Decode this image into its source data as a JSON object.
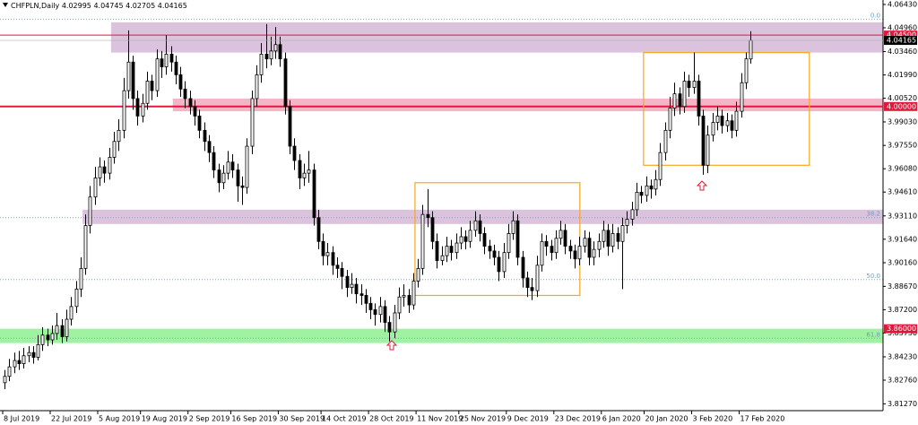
{
  "chart_data": {
    "type": "candlestick",
    "symbol": "CHFPLN,Daily",
    "ylim": [
      3.8084,
      4.0671
    ],
    "yticks": [
      {
        "value": 4.0643,
        "label": "4.06430"
      },
      {
        "value": 4.0496,
        "label": "4.04960"
      },
      {
        "value": 4.0346,
        "label": "4.03460"
      },
      {
        "value": 4.0199,
        "label": "4.01990"
      },
      {
        "value": 4.0052,
        "label": "4.00520"
      },
      {
        "value": 3.9903,
        "label": "3.99030"
      },
      {
        "value": 3.9755,
        "label": "3.97550"
      },
      {
        "value": 3.9608,
        "label": "3.96080"
      },
      {
        "value": 3.9461,
        "label": "3.94610"
      },
      {
        "value": 3.9311,
        "label": "3.93110"
      },
      {
        "value": 3.9164,
        "label": "3.91640"
      },
      {
        "value": 3.9016,
        "label": "3.90160"
      },
      {
        "value": 3.8867,
        "label": "3.88670"
      },
      {
        "value": 3.872,
        "label": "3.87200"
      },
      {
        "value": 3.8573,
        "label": "3.85730"
      },
      {
        "value": 3.8423,
        "label": "3.84230"
      },
      {
        "value": 3.8276,
        "label": "3.82760"
      },
      {
        "value": 3.8127,
        "label": "3.81270"
      }
    ],
    "xticks": [
      {
        "value": 0,
        "label": "8 Jul 2019"
      },
      {
        "value": 10,
        "label": "22 Jul 2019"
      },
      {
        "value": 20,
        "label": "5 Aug 2019"
      },
      {
        "value": 29,
        "label": "19 Aug 2019"
      },
      {
        "value": 39,
        "label": "2 Sep 2019"
      },
      {
        "value": 48,
        "label": "16 Sep 2019"
      },
      {
        "value": 58,
        "label": "30 Sep 2019"
      },
      {
        "value": 67,
        "label": "14 Oct 2019"
      },
      {
        "value": 77,
        "label": "28 Oct 2019"
      },
      {
        "value": 87,
        "label": "11 Nov 2019"
      },
      {
        "value": 96,
        "label": "25 Nov 2019"
      },
      {
        "value": 106,
        "label": "9 Dec 2019"
      },
      {
        "value": 116,
        "label": "23 Dec 2019"
      },
      {
        "value": 126,
        "label": "6 Jan 2020"
      },
      {
        "value": 135,
        "label": "20 Jan 2020"
      },
      {
        "value": 145,
        "label": "3 Feb 2020"
      },
      {
        "value": 155,
        "label": "17 Feb 2020"
      }
    ],
    "zones": [
      {
        "from": 4.053,
        "to": 4.034,
        "start": 23,
        "color": "#d5b8d8"
      },
      {
        "from": 4.005,
        "to": 3.997,
        "start": 36,
        "color": "#f2a9bd"
      },
      {
        "from": 3.935,
        "to": 3.926,
        "start": 17,
        "color": "#d5b8d8"
      },
      {
        "from": 3.86,
        "to": 3.851,
        "start": -1,
        "color": "#8ef08e"
      }
    ],
    "boxes": [
      {
        "x": [
          86.4,
          121.1
        ],
        "y": [
          3.881,
          3.952
        ],
        "color": "#f5a623"
      },
      {
        "x": [
          134.5,
          169.4
        ],
        "y": [
          3.963,
          4.034
        ],
        "color": "#f5a623"
      }
    ],
    "fib_levels": [
      {
        "value": 4.055,
        "label": "0.0"
      },
      {
        "value": 3.93,
        "label": "38.2"
      },
      {
        "value": 3.891,
        "label": "50.0"
      },
      {
        "value": 3.854,
        "label": "61.8"
      }
    ],
    "levels": [
      {
        "value": 4.045,
        "label": "4.04500",
        "color": "#e0193c",
        "width": 1
      },
      {
        "value": 4.0,
        "label": "4.00000",
        "color": "#e0193c",
        "width": 2
      },
      {
        "value": 3.86,
        "label": "3.86000",
        "color": "#e0193c",
        "width": 0
      }
    ],
    "candles": [
      [
        3.826,
        3.834,
        3.822,
        3.83
      ],
      [
        3.83,
        3.841,
        3.827,
        3.836
      ],
      [
        3.836,
        3.845,
        3.832,
        3.84
      ],
      [
        3.84,
        3.846,
        3.834,
        3.838
      ],
      [
        3.838,
        3.848,
        3.835,
        3.843
      ],
      [
        3.843,
        3.849,
        3.839,
        3.845
      ],
      [
        3.845,
        3.849,
        3.838,
        3.842
      ],
      [
        3.842,
        3.856,
        3.84,
        3.85
      ],
      [
        3.85,
        3.861,
        3.846,
        3.856
      ],
      [
        3.856,
        3.86,
        3.849,
        3.853
      ],
      [
        3.853,
        3.862,
        3.85,
        3.857
      ],
      [
        3.857,
        3.87,
        3.853,
        3.862
      ],
      [
        3.862,
        3.866,
        3.851,
        3.855
      ],
      [
        3.855,
        3.872,
        3.852,
        3.866
      ],
      [
        3.866,
        3.88,
        3.862,
        3.874
      ],
      [
        3.874,
        3.89,
        3.87,
        3.885
      ],
      [
        3.885,
        3.905,
        3.88,
        3.898
      ],
      [
        3.898,
        3.932,
        3.894,
        3.925
      ],
      [
        3.925,
        3.95,
        3.92,
        3.943
      ],
      [
        3.943,
        3.962,
        3.938,
        3.955
      ],
      [
        3.955,
        3.968,
        3.95,
        3.962
      ],
      [
        3.962,
        3.966,
        3.952,
        3.958
      ],
      [
        3.958,
        3.974,
        3.954,
        3.968
      ],
      [
        3.968,
        3.984,
        3.964,
        3.978
      ],
      [
        3.978,
        3.992,
        3.972,
        3.985
      ],
      [
        3.985,
        4.018,
        3.98,
        4.01
      ],
      [
        4.01,
        4.048,
        4.005,
        4.028
      ],
      [
        4.028,
        4.032,
        3.998,
        4.005
      ],
      [
        4.005,
        4.01,
        3.988,
        3.994
      ],
      [
        3.994,
        4.008,
        3.99,
        4.002
      ],
      [
        4.002,
        4.022,
        3.998,
        4.016
      ],
      [
        4.016,
        4.02,
        4.004,
        4.01
      ],
      [
        4.01,
        4.036,
        4.006,
        4.03
      ],
      [
        4.03,
        4.035,
        4.018,
        4.025
      ],
      [
        4.025,
        4.045,
        4.02,
        4.033
      ],
      [
        4.033,
        4.038,
        4.022,
        4.028
      ],
      [
        4.028,
        4.032,
        4.014,
        4.02
      ],
      [
        4.02,
        4.025,
        4.006,
        4.011
      ],
      [
        4.011,
        4.016,
        3.999,
        4.005
      ],
      [
        4.005,
        4.01,
        3.995,
        4.0
      ],
      [
        4.0,
        4.004,
        3.988,
        3.994
      ],
      [
        3.994,
        3.998,
        3.98,
        3.985
      ],
      [
        3.985,
        3.99,
        3.972,
        3.978
      ],
      [
        3.978,
        3.982,
        3.965,
        3.971
      ],
      [
        3.971,
        3.975,
        3.955,
        3.96
      ],
      [
        3.96,
        3.964,
        3.946,
        3.952
      ],
      [
        3.952,
        3.963,
        3.948,
        3.958
      ],
      [
        3.958,
        3.972,
        3.954,
        3.965
      ],
      [
        3.965,
        3.97,
        3.955,
        3.96
      ],
      [
        3.96,
        3.964,
        3.94,
        3.95
      ],
      [
        3.95,
        3.956,
        3.938,
        3.949
      ],
      [
        3.949,
        3.98,
        3.945,
        3.975
      ],
      [
        3.975,
        4.01,
        3.97,
        4.005
      ],
      [
        4.005,
        4.026,
        4.0,
        4.02
      ],
      [
        4.02,
        4.04,
        4.015,
        4.033
      ],
      [
        4.033,
        4.052,
        4.024,
        4.03
      ],
      [
        4.03,
        4.044,
        4.026,
        4.035
      ],
      [
        4.035,
        4.05,
        4.03,
        4.039
      ],
      [
        4.039,
        4.044,
        4.025,
        4.03
      ],
      [
        4.03,
        4.034,
        3.995,
        4.0
      ],
      [
        4.0,
        4.004,
        3.97,
        3.975
      ],
      [
        3.975,
        3.98,
        3.96,
        3.966
      ],
      [
        3.966,
        3.97,
        3.948,
        3.955
      ],
      [
        3.955,
        3.964,
        3.95,
        3.958
      ],
      [
        3.958,
        3.972,
        3.952,
        3.96
      ],
      [
        3.96,
        3.964,
        3.925,
        3.93
      ],
      [
        3.93,
        3.935,
        3.91,
        3.915
      ],
      [
        3.915,
        3.92,
        3.9,
        3.906
      ],
      [
        3.906,
        3.914,
        3.9,
        3.908
      ],
      [
        3.908,
        3.912,
        3.894,
        3.9
      ],
      [
        3.9,
        3.905,
        3.892,
        3.898
      ],
      [
        3.898,
        3.902,
        3.885,
        3.893
      ],
      [
        3.893,
        3.897,
        3.88,
        3.886
      ],
      [
        3.886,
        3.895,
        3.882,
        3.888
      ],
      [
        3.888,
        3.892,
        3.876,
        3.882
      ],
      [
        3.882,
        3.888,
        3.875,
        3.881
      ],
      [
        3.881,
        3.885,
        3.87,
        3.876
      ],
      [
        3.876,
        3.88,
        3.866,
        3.872
      ],
      [
        3.872,
        3.876,
        3.862,
        3.869
      ],
      [
        3.869,
        3.88,
        3.864,
        3.874
      ],
      [
        3.874,
        3.878,
        3.858,
        3.864
      ],
      [
        3.864,
        3.868,
        3.852,
        3.858
      ],
      [
        3.858,
        3.875,
        3.854,
        3.87
      ],
      [
        3.87,
        3.886,
        3.866,
        3.88
      ],
      [
        3.88,
        3.888,
        3.874,
        3.881
      ],
      [
        3.881,
        3.885,
        3.87,
        3.875
      ],
      [
        3.875,
        3.895,
        3.872,
        3.89
      ],
      [
        3.89,
        3.904,
        3.886,
        3.898
      ],
      [
        3.898,
        3.938,
        3.894,
        3.932
      ],
      [
        3.932,
        3.948,
        3.924,
        3.93
      ],
      [
        3.93,
        3.934,
        3.91,
        3.915
      ],
      [
        3.915,
        3.92,
        3.898,
        3.903
      ],
      [
        3.903,
        3.912,
        3.9,
        3.906
      ],
      [
        3.906,
        3.918,
        3.902,
        3.912
      ],
      [
        3.912,
        3.916,
        3.903,
        3.908
      ],
      [
        3.908,
        3.92,
        3.904,
        3.914
      ],
      [
        3.914,
        3.924,
        3.91,
        3.918
      ],
      [
        3.918,
        3.922,
        3.91,
        3.915
      ],
      [
        3.915,
        3.928,
        3.911,
        3.922
      ],
      [
        3.922,
        3.934,
        3.918,
        3.928
      ],
      [
        3.928,
        3.932,
        3.915,
        3.92
      ],
      [
        3.92,
        3.924,
        3.907,
        3.912
      ],
      [
        3.912,
        3.916,
        3.904,
        3.909
      ],
      [
        3.909,
        3.913,
        3.9,
        3.905
      ],
      [
        3.905,
        3.909,
        3.89,
        3.896
      ],
      [
        3.896,
        3.914,
        3.892,
        3.908
      ],
      [
        3.908,
        3.926,
        3.904,
        3.92
      ],
      [
        3.92,
        3.934,
        3.916,
        3.928
      ],
      [
        3.928,
        3.932,
        3.9,
        3.905
      ],
      [
        3.905,
        3.909,
        3.886,
        3.892
      ],
      [
        3.892,
        3.896,
        3.88,
        3.886
      ],
      [
        3.886,
        3.892,
        3.878,
        3.884
      ],
      [
        3.884,
        3.906,
        3.88,
        3.9
      ],
      [
        3.9,
        3.92,
        3.896,
        3.915
      ],
      [
        3.915,
        3.919,
        3.906,
        3.912
      ],
      [
        3.912,
        3.916,
        3.903,
        3.908
      ],
      [
        3.908,
        3.922,
        3.904,
        3.917
      ],
      [
        3.917,
        3.928,
        3.913,
        3.922
      ],
      [
        3.922,
        3.926,
        3.907,
        3.912
      ],
      [
        3.912,
        3.916,
        3.904,
        3.909
      ],
      [
        3.909,
        3.913,
        3.898,
        3.904
      ],
      [
        3.904,
        3.918,
        3.9,
        3.912
      ],
      [
        3.912,
        3.922,
        3.908,
        3.917
      ],
      [
        3.917,
        3.921,
        3.9,
        3.905
      ],
      [
        3.905,
        3.915,
        3.9,
        3.91
      ],
      [
        3.91,
        3.92,
        3.905,
        3.915
      ],
      [
        3.915,
        3.928,
        3.911,
        3.922
      ],
      [
        3.922,
        3.926,
        3.906,
        3.912
      ],
      [
        3.912,
        3.926,
        3.908,
        3.92
      ],
      [
        3.92,
        3.924,
        3.91,
        3.915
      ],
      [
        3.915,
        3.93,
        3.885,
        3.925
      ],
      [
        3.925,
        3.934,
        3.92,
        3.929
      ],
      [
        3.929,
        3.94,
        3.925,
        3.935
      ],
      [
        3.935,
        3.952,
        3.931,
        3.946
      ],
      [
        3.946,
        3.95,
        3.939,
        3.944
      ],
      [
        3.944,
        3.956,
        3.94,
        3.95
      ],
      [
        3.95,
        3.954,
        3.942,
        3.948
      ],
      [
        3.948,
        3.96,
        3.944,
        3.954
      ],
      [
        3.954,
        3.977,
        3.95,
        3.971
      ],
      [
        3.971,
        3.99,
        3.966,
        3.985
      ],
      [
        3.985,
        4.006,
        3.98,
        3.999
      ],
      [
        3.999,
        4.015,
        3.994,
        4.008
      ],
      [
        4.008,
        4.012,
        3.995,
        4.0
      ],
      [
        4.0,
        4.022,
        3.996,
        4.016
      ],
      [
        4.016,
        4.02,
        4.006,
        4.012
      ],
      [
        4.012,
        4.034,
        4.008,
        4.016
      ],
      [
        4.016,
        4.02,
        3.988,
        3.994
      ],
      [
        3.994,
        3.998,
        3.957,
        3.963
      ],
      [
        3.963,
        3.988,
        3.958,
        3.982
      ],
      [
        3.982,
        3.996,
        3.978,
        3.99
      ],
      [
        3.99,
        4.0,
        3.985,
        3.994
      ],
      [
        3.994,
        3.998,
        3.983,
        3.988
      ],
      [
        3.988,
        3.996,
        3.984,
        3.991
      ],
      [
        3.991,
        3.995,
        3.98,
        3.985
      ],
      [
        3.985,
        4.003,
        3.981,
        3.997
      ],
      [
        3.997,
        4.021,
        3.993,
        4.015
      ],
      [
        4.015,
        4.034,
        4.011,
        4.03
      ],
      [
        4.02995,
        4.04745,
        4.02705,
        4.04165
      ]
    ]
  }
}
